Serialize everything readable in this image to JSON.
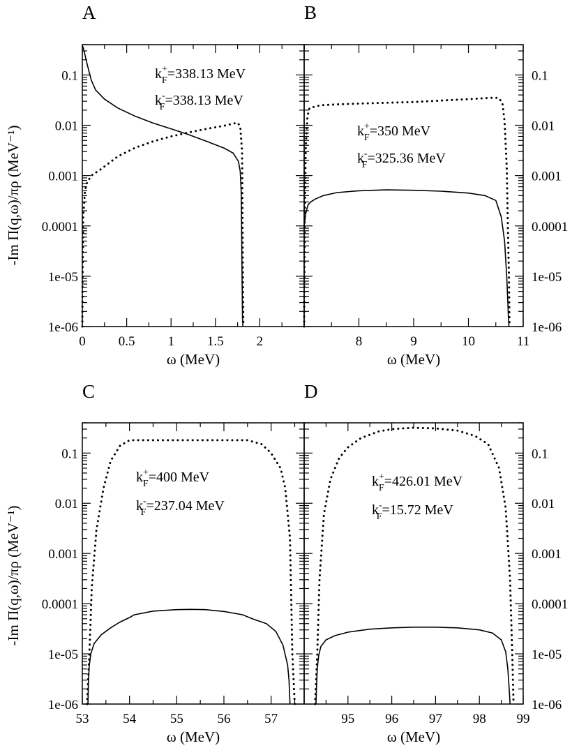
{
  "chart_data": [
    {
      "panel": "A",
      "type": "line",
      "y_scale": "log",
      "ylim": [
        1e-06,
        0.4
      ],
      "xlim": [
        0,
        2.5
      ],
      "x_ticks": [
        0,
        0.5,
        1,
        1.5,
        2
      ],
      "x_tick_labels": [
        "0",
        "0.5",
        "1",
        "1.5",
        "2"
      ],
      "y_ticks": [
        1e-06,
        1e-05,
        0.0001,
        0.001,
        0.01,
        0.1
      ],
      "y_tick_labels": [
        "1e-06",
        "1e-05",
        "0.0001",
        "0.001",
        "0.01",
        "0.1"
      ],
      "xlabel": "ω (MeV)",
      "ylabel": "-Im Π(q,ω)/πρ (MeV⁻¹)",
      "annotations": [
        {
          "base": "k",
          "sub": "F",
          "sup": "+",
          "rest": "=338.13 MeV"
        },
        {
          "base": "k",
          "sub": "F",
          "sup": "-",
          "rest": "=338.13 MeV"
        }
      ],
      "series": [
        {
          "style": "solid",
          "x": [
            0,
            0.01,
            0.03,
            0.06,
            0.1,
            0.15,
            0.25,
            0.4,
            0.6,
            0.8,
            1.0,
            1.2,
            1.4,
            1.6,
            1.7,
            1.76,
            1.78,
            1.79,
            1.795,
            1.8,
            1.805,
            1.81
          ],
          "y": [
            0.38,
            0.35,
            0.25,
            0.15,
            0.08,
            0.05,
            0.033,
            0.022,
            0.015,
            0.011,
            0.0085,
            0.0065,
            0.0048,
            0.0035,
            0.0028,
            0.0019,
            0.0012,
            0.0005,
            0.0001,
            1e-05,
            1.5e-06,
            1e-06
          ]
        },
        {
          "style": "dotted",
          "x": [
            0,
            0.003,
            0.01,
            0.03,
            0.05,
            0.1,
            0.2,
            0.4,
            0.6,
            0.8,
            1.0,
            1.2,
            1.4,
            1.6,
            1.7,
            1.75,
            1.78,
            1.8,
            1.81,
            1.815
          ],
          "y": [
            1e-06,
            1e-05,
            0.00015,
            0.0005,
            0.0007,
            0.001,
            0.0013,
            0.0024,
            0.0036,
            0.0048,
            0.006,
            0.0072,
            0.0085,
            0.0098,
            0.0108,
            0.0112,
            0.0095,
            0.003,
            1e-05,
            1e-06
          ]
        }
      ]
    },
    {
      "panel": "B",
      "type": "line",
      "y_scale": "log",
      "ylim": [
        1e-06,
        0.4
      ],
      "xlim": [
        7,
        11
      ],
      "x_ticks": [
        8,
        9,
        10,
        11
      ],
      "x_tick_labels": [
        "8",
        "9",
        "10",
        "11"
      ],
      "y_ticks": [
        1e-06,
        1e-05,
        0.0001,
        0.001,
        0.01,
        0.1
      ],
      "y_tick_labels": [
        "1e-06",
        "1e-05",
        "0.0001",
        "0.001",
        "0.01",
        "0.1"
      ],
      "xlabel": "ω (MeV)",
      "annotations": [
        {
          "base": "k",
          "sub": "F",
          "sup": "+",
          "rest": "=350 MeV"
        },
        {
          "base": "k",
          "sub": "F",
          "sup": "-",
          "rest": "=325.36 MeV"
        }
      ],
      "series": [
        {
          "style": "solid",
          "x": [
            7.0,
            7.03,
            7.07,
            7.12,
            7.2,
            7.35,
            7.6,
            8.0,
            8.5,
            9.0,
            9.5,
            10.0,
            10.3,
            10.5,
            10.6,
            10.66,
            10.7,
            10.72,
            10.73,
            10.74
          ],
          "y": [
            0.0001,
            0.00018,
            0.00026,
            0.0003,
            0.00034,
            0.0004,
            0.00046,
            0.0005,
            0.00052,
            0.00051,
            0.00049,
            0.00045,
            0.0004,
            0.00032,
            0.00015,
            5e-05,
            1e-05,
            3e-06,
            1.5e-06,
            1e-06
          ]
        },
        {
          "style": "dotted",
          "x": [
            7.0,
            7.01,
            7.03,
            7.06,
            7.1,
            7.3,
            7.6,
            8.0,
            8.5,
            9.0,
            9.5,
            10.0,
            10.4,
            10.55,
            10.62,
            10.66,
            10.7,
            10.72,
            10.74,
            10.75
          ],
          "y": [
            1e-06,
            0.0001,
            0.004,
            0.015,
            0.022,
            0.025,
            0.026,
            0.027,
            0.028,
            0.029,
            0.031,
            0.033,
            0.035,
            0.035,
            0.028,
            0.012,
            0.0015,
            0.0001,
            1e-05,
            1e-06
          ]
        }
      ]
    },
    {
      "panel": "C",
      "type": "line",
      "y_scale": "log",
      "ylim": [
        1e-06,
        0.4
      ],
      "xlim": [
        53,
        57.7
      ],
      "x_ticks": [
        53,
        54,
        55,
        56,
        57
      ],
      "x_tick_labels": [
        "53",
        "54",
        "55",
        "56",
        "57"
      ],
      "y_ticks": [
        1e-06,
        1e-05,
        0.0001,
        0.001,
        0.01,
        0.1
      ],
      "y_tick_labels": [
        "1e-06",
        "1e-05",
        "0.0001",
        "0.001",
        "0.01",
        "0.1"
      ],
      "xlabel": "ω (MeV)",
      "ylabel": "-Im Π(q,ω)/πρ (MeV⁻¹)",
      "annotations": [
        {
          "base": "k",
          "sub": "F",
          "sup": "+",
          "rest": "=400 MeV"
        },
        {
          "base": "k",
          "sub": "F",
          "sup": "-",
          "rest": "=237.04 MeV"
        }
      ],
      "series": [
        {
          "style": "solid",
          "x": [
            53.12,
            53.13,
            53.15,
            53.18,
            53.25,
            53.4,
            53.6,
            53.8,
            54.0,
            54.1,
            54.5,
            55.0,
            55.3,
            55.6,
            56.0,
            56.4,
            56.6,
            56.9,
            57.1,
            57.25,
            57.35,
            57.38,
            57.4
          ],
          "y": [
            1e-06,
            3e-06,
            6e-06,
            1e-05,
            1.6e-05,
            2.4e-05,
            3.3e-05,
            4.3e-05,
            5.3e-05,
            6e-05,
            7.1e-05,
            7.6e-05,
            7.7e-05,
            7.6e-05,
            7e-05,
            6e-05,
            5e-05,
            4e-05,
            2.8e-05,
            1.5e-05,
            6e-06,
            3e-06,
            1e-06
          ]
        },
        {
          "style": "dotted",
          "x": [
            53.1,
            53.15,
            53.2,
            53.3,
            53.45,
            53.6,
            53.8,
            54.0,
            54.5,
            55.0,
            55.5,
            56.0,
            56.5,
            56.8,
            57.0,
            57.2,
            57.3,
            57.4,
            57.45,
            57.5
          ],
          "y": [
            1e-06,
            1e-05,
            0.0002,
            0.003,
            0.02,
            0.07,
            0.14,
            0.18,
            0.18,
            0.18,
            0.18,
            0.18,
            0.18,
            0.15,
            0.1,
            0.05,
            0.02,
            0.002,
            1e-05,
            1e-06
          ]
        }
      ]
    },
    {
      "panel": "D",
      "type": "line",
      "y_scale": "log",
      "ylim": [
        1e-06,
        0.4
      ],
      "xlim": [
        94,
        99
      ],
      "x_ticks": [
        95,
        96,
        97,
        98,
        99
      ],
      "x_tick_labels": [
        "95",
        "96",
        "97",
        "98",
        "99"
      ],
      "y_ticks": [
        1e-06,
        1e-05,
        0.0001,
        0.001,
        0.01,
        0.1
      ],
      "y_tick_labels": [
        "1e-06",
        "1e-05",
        "0.0001",
        "0.001",
        "0.01",
        "0.1"
      ],
      "xlabel": "ω (MeV)",
      "annotations": [
        {
          "base": "k",
          "sub": "F",
          "sup": "+",
          "rest": "=426.01 MeV"
        },
        {
          "base": "k",
          "sub": "F",
          "sup": "-",
          "rest": "=15.72 MeV"
        }
      ],
      "series": [
        {
          "style": "solid",
          "x": [
            94.27,
            94.28,
            94.3,
            94.33,
            94.38,
            94.5,
            94.7,
            95.0,
            95.5,
            96.0,
            96.5,
            97.0,
            97.5,
            98.0,
            98.3,
            98.5,
            98.6,
            98.65,
            98.68,
            98.7
          ],
          "y": [
            1e-06,
            2e-06,
            5e-06,
            9e-06,
            1.4e-05,
            1.9e-05,
            2.3e-05,
            2.7e-05,
            3.1e-05,
            3.3e-05,
            3.4e-05,
            3.4e-05,
            3.3e-05,
            3e-05,
            2.6e-05,
            1.9e-05,
            1.1e-05,
            5e-06,
            2e-06,
            1e-06
          ]
        },
        {
          "style": "dotted",
          "x": [
            94.25,
            94.3,
            94.35,
            94.45,
            94.6,
            94.8,
            95.0,
            95.3,
            95.7,
            96.0,
            96.5,
            97.0,
            97.5,
            97.9,
            98.2,
            98.45,
            98.6,
            98.7,
            98.75,
            98.78
          ],
          "y": [
            1e-06,
            1e-05,
            0.0003,
            0.006,
            0.03,
            0.08,
            0.13,
            0.2,
            0.27,
            0.3,
            0.32,
            0.31,
            0.28,
            0.22,
            0.15,
            0.05,
            0.008,
            0.0003,
            1e-05,
            1e-06
          ]
        }
      ]
    }
  ]
}
